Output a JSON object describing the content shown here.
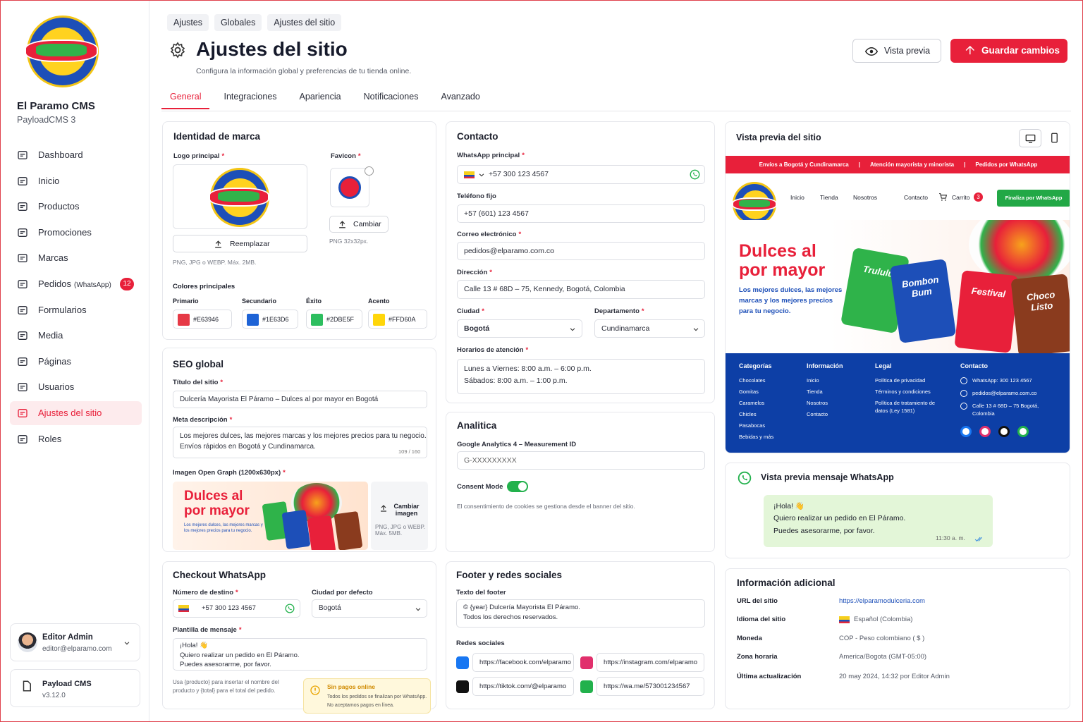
{
  "required_mark": "*",
  "sidebar": {
    "brand": "El Paramo CMS",
    "platform": "PayloadCMS 3",
    "nav": [
      {
        "label": "Dashboard"
      },
      {
        "label": "Inicio"
      },
      {
        "label": "Productos"
      },
      {
        "label": "Promociones"
      },
      {
        "label": "Marcas"
      },
      {
        "label": "Pedidos",
        "note": "(WhatsApp)",
        "badge": 12
      },
      {
        "label": "Formularios"
      },
      {
        "label": "Media"
      },
      {
        "label": "Páginas"
      },
      {
        "label": "Usuarios"
      },
      {
        "label": "Ajustes del sitio"
      },
      {
        "label": "Roles"
      }
    ],
    "active": 10,
    "user": {
      "name": "Editor Admin",
      "email": "editor@elparamo.com"
    },
    "app": {
      "name": "Payload CMS",
      "version": "v3.12.0"
    }
  },
  "header": {
    "breadcrumbs": [
      "Ajustes",
      "Globales",
      "Ajustes del sitio"
    ],
    "title": "Ajustes del sitio",
    "subtitle": "Configura la información global y preferencias de tu tienda online.",
    "preview_button": "Vista previa",
    "save_button": "Guardar cambios"
  },
  "tabs": {
    "items": [
      "General",
      "Integraciones",
      "Apariencia",
      "Notificaciones",
      "Avanzado"
    ],
    "active": 0
  },
  "brand_identity": {
    "title": "Identidad de marca",
    "logo_label": "Logo principal",
    "favicon_label": "Favicon",
    "replace_button": "Reemplazar",
    "change_button": "Cambiar",
    "logo_hint": "PNG, JPG o WEBP. Máx. 2MB.",
    "favicon_hint": "PNG 32x32px.",
    "colors_title": "Colores principales",
    "colors": [
      {
        "label": "Primario",
        "value": "#E63946"
      },
      {
        "label": "Secundario",
        "value": "#1E63D6"
      },
      {
        "label": "Éxito",
        "value": "#2DBE5F"
      },
      {
        "label": "Acento",
        "value": "#FFD60A"
      }
    ]
  },
  "seo": {
    "title": "SEO global",
    "site_title_label": "Título del sitio",
    "site_title": "Dulcería Mayorista El Páramo – Dulces al por mayor en Bogotá",
    "meta_label": "Meta descripción",
    "meta_lines": [
      "Los mejores dulces, las mejores marcas y los mejores precios para tu negocio.",
      "Envíos rápidos en Bogotá y Cundinamarca."
    ],
    "meta_count": "109 / 160",
    "og_label": "Imagen Open Graph (1200x630px)",
    "og_headline": [
      "Dulces al",
      "por mayor"
    ],
    "og_text": "Los mejores dulces, las mejores marcas y los mejores precios para tu negocio.",
    "og_change": "Cambiar imagen",
    "og_hint": "PNG, JPG o WEBP. Máx. 5MB."
  },
  "checkout": {
    "title": "Checkout WhatsApp",
    "number_label": "Número de destino",
    "number": "+57 300 123 4567",
    "city_label": "Ciudad por defecto",
    "city": "Bogotá",
    "template_label": "Plantilla de mensaje",
    "template_lines": [
      "¡Hola! 👋",
      "Quiero realizar un pedido en El Páramo.",
      "Puedes asesorarme, por favor."
    ],
    "help": "Usa {producto} para insertar el nombre del producto y {total} para el total del pedido.",
    "notice_title": "Sin pagos online",
    "notice_text": "Todos los pedidos se finalizan por WhatsApp. No aceptamos pagos en línea."
  },
  "contact": {
    "title": "Contacto",
    "whatsapp_label": "WhatsApp principal",
    "whatsapp": "+57 300 123 4567",
    "phone_label": "Teléfono fijo",
    "phone": "+57 (601) 123 4567",
    "email_label": "Correo electrónico",
    "email": "pedidos@elparamo.com.co",
    "address_label": "Dirección",
    "address": "Calle 13 # 68D – 75, Kennedy, Bogotá, Colombia",
    "city_label": "Ciudad",
    "city": "Bogotá",
    "department_label": "Departamento",
    "department": "Cundinamarca",
    "hours_label": "Horarios de atención",
    "hours": [
      "Lunes a Viernes: 8:00 a.m. – 6:00 p.m.",
      "Sábados: 8:00 a.m. – 1:00 p.m."
    ]
  },
  "analytics": {
    "title": "Analitica",
    "ga_label": "Google Analytics 4 – Measurement ID",
    "ga_placeholder": "G-XXXXXXXXX",
    "consent_label": "Consent Mode",
    "consent_on": true,
    "consent_note": "El consentimiento de cookies se gestiona desde el banner del sitio."
  },
  "footer_social": {
    "title": "Footer y redes sociales",
    "footer_label": "Texto del footer",
    "footer_lines": [
      "© {year} Dulcería Mayorista El Páramo.",
      "Todos los derechos reservados."
    ],
    "social_label": "Redes sociales",
    "links": [
      "https://facebook.com/elparamo",
      "https://instagram.com/elparamo",
      "https://tiktok.com/@elparamo",
      "https://wa.me/573001234567"
    ]
  },
  "site_preview": {
    "title": "Vista previa del sitio",
    "topbar": [
      "Envíos a Bogotá y Cundinamarca",
      "Atención mayorista y minorista",
      "Pedidos por WhatsApp"
    ],
    "separator": "|",
    "nav": [
      "Inicio",
      "Tienda",
      "Nosotros",
      "Contacto"
    ],
    "cart": "Carrito",
    "cart_count": 3,
    "cta": "Finaliza por WhatsApp",
    "hero_title": [
      "Dulces al",
      "por mayor"
    ],
    "hero_text": [
      "Los mejores dulces, las mejores",
      "marcas y los mejores precios",
      "para tu negocio."
    ],
    "hero_products": [
      "Trululu",
      "Bombon Bum",
      "Festival",
      "Choco Listo"
    ],
    "footer_columns": [
      {
        "title": "Categorías",
        "items": [
          "Chocolates",
          "Gomitas",
          "Caramelos",
          "Chicles",
          "Pasabocas",
          "Bebidas y más"
        ]
      },
      {
        "title": "Información",
        "items": [
          "Inicio",
          "Tienda",
          "Nosotros",
          "Contacto"
        ]
      },
      {
        "title": "Legal",
        "items": [
          "Política de privacidad",
          "Términos y condiciones",
          "Política de tratamiento de datos (Ley 1581)"
        ]
      },
      {
        "title": "Contacto",
        "items": [
          "WhatsApp: 300 123 4567",
          "pedidos@elparamo.com.co",
          "Calle 13 # 68D – 75 Bogotá, Colombia"
        ]
      }
    ]
  },
  "whatsapp_preview": {
    "title": "Vista previa mensaje WhatsApp",
    "message": [
      "¡Hola! 👋",
      "Quiero realizar un pedido en El Páramo.",
      "Puedes asesorarme, por favor."
    ],
    "time": "11:30 a. m."
  },
  "additional_info": {
    "title": "Información adicional",
    "rows": [
      [
        "URL del sitio",
        "https://elparamodulceria.com"
      ],
      [
        "Idioma del sitio",
        "Español (Colombia)"
      ],
      [
        "Moneda",
        "COP - Peso colombiano ( $ )"
      ],
      [
        "Zona horaria",
        "America/Bogota (GMT-05:00)"
      ],
      [
        "Última actualización",
        "20 may 2024, 14:32 por Editor Admin"
      ]
    ]
  }
}
